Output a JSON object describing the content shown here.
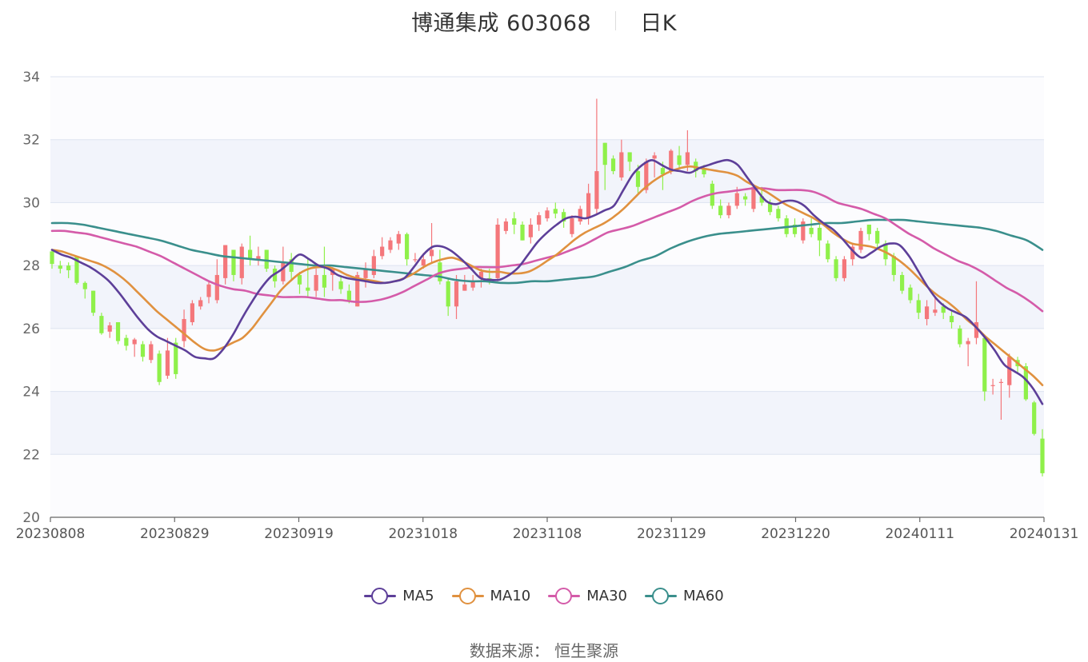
{
  "title": {
    "name": "博通集成 603068",
    "period": "日K"
  },
  "legend": [
    {
      "name": "MA5",
      "color": "#5d3f99"
    },
    {
      "name": "MA10",
      "color": "#e0913f"
    },
    {
      "name": "MA30",
      "color": "#d45ba9"
    },
    {
      "name": "MA60",
      "color": "#3a8f8c"
    }
  ],
  "source": "数据来源： 恒生聚源",
  "colors": {
    "up": "#f4777b",
    "down": "#8ff04a",
    "grid": "#dde3f0",
    "band": "#f2f4fb"
  },
  "chart_data": {
    "type": "candlestick",
    "ylim": [
      20,
      34
    ],
    "y_ticks": [
      "20",
      "22",
      "24",
      "26",
      "28",
      "30",
      "32",
      "34"
    ],
    "x_ticks": [
      "20230808",
      "20230829",
      "20230919",
      "20231018",
      "20231108",
      "20231129",
      "20231220",
      "20240111",
      "20240131"
    ],
    "candles": [
      [
        28.45,
        28.05,
        28.5,
        27.9
      ],
      [
        28.0,
        27.9,
        28.15,
        27.75
      ],
      [
        28.0,
        27.85,
        28.1,
        27.6
      ],
      [
        28.3,
        27.45,
        28.3,
        27.4
      ],
      [
        27.45,
        27.25,
        27.5,
        26.95
      ],
      [
        27.2,
        26.5,
        27.2,
        26.4
      ],
      [
        26.4,
        25.85,
        26.5,
        25.8
      ],
      [
        25.9,
        26.1,
        26.2,
        25.7
      ],
      [
        26.2,
        25.6,
        26.2,
        25.5
      ],
      [
        25.7,
        25.45,
        25.8,
        25.3
      ],
      [
        25.5,
        25.65,
        25.7,
        25.1
      ],
      [
        25.5,
        25.1,
        25.6,
        24.95
      ],
      [
        25.0,
        25.5,
        25.6,
        24.9
      ],
      [
        25.2,
        24.3,
        25.3,
        24.2
      ],
      [
        24.5,
        25.3,
        25.7,
        24.4
      ],
      [
        25.55,
        24.55,
        25.7,
        24.4
      ],
      [
        25.6,
        26.3,
        26.6,
        25.4
      ],
      [
        26.2,
        26.8,
        26.9,
        26.1
      ],
      [
        26.7,
        26.9,
        27.0,
        26.6
      ],
      [
        27.0,
        27.4,
        27.5,
        26.8
      ],
      [
        26.9,
        27.7,
        28.2,
        26.8
      ],
      [
        27.6,
        28.65,
        28.65,
        27.4
      ],
      [
        28.5,
        27.7,
        28.5,
        27.5
      ],
      [
        27.6,
        28.6,
        28.7,
        27.4
      ],
      [
        28.5,
        28.2,
        28.95,
        28.0
      ],
      [
        28.2,
        28.3,
        28.6,
        28.0
      ],
      [
        28.5,
        27.9,
        28.5,
        27.8
      ],
      [
        27.9,
        27.5,
        28.0,
        27.3
      ],
      [
        27.5,
        28.1,
        28.6,
        27.4
      ],
      [
        28.2,
        27.8,
        28.4,
        27.5
      ],
      [
        27.7,
        27.4,
        27.8,
        27.1
      ],
      [
        27.3,
        27.2,
        28.2,
        27.0
      ],
      [
        27.2,
        27.7,
        27.9,
        27.0
      ],
      [
        27.7,
        27.3,
        28.6,
        27.0
      ],
      [
        27.7,
        27.9,
        27.95,
        27.2
      ],
      [
        27.5,
        27.25,
        27.7,
        27.1
      ],
      [
        27.2,
        26.9,
        27.4,
        26.8
      ],
      [
        26.7,
        27.7,
        27.8,
        26.7
      ],
      [
        27.6,
        27.9,
        28.1,
        27.3
      ],
      [
        27.7,
        28.3,
        28.5,
        27.6
      ],
      [
        28.3,
        28.6,
        28.9,
        28.2
      ],
      [
        28.5,
        28.8,
        28.9,
        28.4
      ],
      [
        28.7,
        29.0,
        29.1,
        28.5
      ],
      [
        29.0,
        28.2,
        29.05,
        28.0
      ],
      [
        28.2,
        28.2,
        28.4,
        28.1
      ],
      [
        28.0,
        28.2,
        28.4,
        27.9
      ],
      [
        28.3,
        28.5,
        29.35,
        28.1
      ],
      [
        28.1,
        27.5,
        28.5,
        27.4
      ],
      [
        27.5,
        26.7,
        27.6,
        26.4
      ],
      [
        26.7,
        27.5,
        27.7,
        26.3
      ],
      [
        27.2,
        27.4,
        27.7,
        27.2
      ],
      [
        27.3,
        27.5,
        27.7,
        27.2
      ],
      [
        27.6,
        27.8,
        27.9,
        27.3
      ],
      [
        27.6,
        27.5,
        27.9,
        27.4
      ],
      [
        27.6,
        29.3,
        29.5,
        27.5
      ],
      [
        29.1,
        29.4,
        29.5,
        29.0
      ],
      [
        29.5,
        29.3,
        29.7,
        29.0
      ],
      [
        29.3,
        28.8,
        29.4,
        28.8
      ],
      [
        28.9,
        29.3,
        29.5,
        28.7
      ],
      [
        29.3,
        29.6,
        29.7,
        29.1
      ],
      [
        29.5,
        29.75,
        29.85,
        29.4
      ],
      [
        29.8,
        29.65,
        30.0,
        29.5
      ],
      [
        29.7,
        29.4,
        29.8,
        29.2
      ],
      [
        29.0,
        29.5,
        29.6,
        28.9
      ],
      [
        29.4,
        29.8,
        29.9,
        29.3
      ],
      [
        29.5,
        30.3,
        30.6,
        29.3
      ],
      [
        29.8,
        31.0,
        33.3,
        29.6
      ],
      [
        31.9,
        31.2,
        31.9,
        30.4
      ],
      [
        31.4,
        31.0,
        31.5,
        30.9
      ],
      [
        30.8,
        31.6,
        32.0,
        30.7
      ],
      [
        31.6,
        31.3,
        31.6,
        31.0
      ],
      [
        31.0,
        30.5,
        31.2,
        30.3
      ],
      [
        30.4,
        31.3,
        31.4,
        30.3
      ],
      [
        31.4,
        31.5,
        31.6,
        30.8
      ],
      [
        31.1,
        30.9,
        31.3,
        30.4
      ],
      [
        31.0,
        31.65,
        31.7,
        30.9
      ],
      [
        31.5,
        31.2,
        31.8,
        31.1
      ],
      [
        31.2,
        31.6,
        32.3,
        31.0
      ],
      [
        31.3,
        31.0,
        31.4,
        30.8
      ],
      [
        31.1,
        30.9,
        31.2,
        30.8
      ],
      [
        30.6,
        29.9,
        30.7,
        29.8
      ],
      [
        29.9,
        29.6,
        30.1,
        29.5
      ],
      [
        29.6,
        29.9,
        30.0,
        29.5
      ],
      [
        29.9,
        30.3,
        30.5,
        29.8
      ],
      [
        30.2,
        30.1,
        30.3,
        29.9
      ],
      [
        29.8,
        30.5,
        30.6,
        29.7
      ],
      [
        30.2,
        30.0,
        30.5,
        29.9
      ],
      [
        30.0,
        29.7,
        30.1,
        29.6
      ],
      [
        29.8,
        29.5,
        29.9,
        29.4
      ],
      [
        29.5,
        29.0,
        29.6,
        28.9
      ],
      [
        29.3,
        29.0,
        29.5,
        28.9
      ],
      [
        28.8,
        29.4,
        29.5,
        28.7
      ],
      [
        29.2,
        29.0,
        29.5,
        28.9
      ],
      [
        29.2,
        28.8,
        29.3,
        28.3
      ],
      [
        28.7,
        28.2,
        28.8,
        28.1
      ],
      [
        28.2,
        27.6,
        28.3,
        27.5
      ],
      [
        27.6,
        28.2,
        28.3,
        27.5
      ],
      [
        28.2,
        28.6,
        28.7,
        28.0
      ],
      [
        28.5,
        29.1,
        29.2,
        28.4
      ],
      [
        29.3,
        29.0,
        29.3,
        28.8
      ],
      [
        29.1,
        28.7,
        29.2,
        28.5
      ],
      [
        28.7,
        28.2,
        28.8,
        28.0
      ],
      [
        28.3,
        27.7,
        28.4,
        27.5
      ],
      [
        27.7,
        27.2,
        27.8,
        27.1
      ],
      [
        27.3,
        26.9,
        27.4,
        26.8
      ],
      [
        26.9,
        26.5,
        27.1,
        26.3
      ],
      [
        26.3,
        26.7,
        26.9,
        26.1
      ],
      [
        26.5,
        26.6,
        27.0,
        26.4
      ],
      [
        26.7,
        26.5,
        26.8,
        26.3
      ],
      [
        26.4,
        26.2,
        26.6,
        26.0
      ],
      [
        26.0,
        25.5,
        26.1,
        25.4
      ],
      [
        25.5,
        25.6,
        25.7,
        24.8
      ],
      [
        25.7,
        26.2,
        27.5,
        25.5
      ],
      [
        25.7,
        24.0,
        25.8,
        23.7
      ],
      [
        24.2,
        24.2,
        24.4,
        23.9
      ],
      [
        24.3,
        24.3,
        24.4,
        23.1
      ],
      [
        24.2,
        25.1,
        25.2,
        23.8
      ],
      [
        25.0,
        24.8,
        25.1,
        24.6
      ],
      [
        24.8,
        23.75,
        24.9,
        23.7
      ],
      [
        23.65,
        22.65,
        23.7,
        22.6
      ],
      [
        22.5,
        21.4,
        22.8,
        21.3
      ]
    ],
    "ma5": [
      28.5,
      28.35,
      28.25,
      28.1,
      27.95,
      27.75,
      27.5,
      27.15,
      26.75,
      26.35,
      26.0,
      25.75,
      25.6,
      25.45,
      25.3,
      25.1,
      25.05,
      25.05,
      25.35,
      25.8,
      26.35,
      26.85,
      27.3,
      27.65,
      27.85,
      28.1,
      28.35,
      28.2,
      28.0,
      27.9,
      27.7,
      27.6,
      27.55,
      27.5,
      27.45,
      27.45,
      27.5,
      27.6,
      27.95,
      28.35,
      28.6,
      28.6,
      28.45,
      28.2,
      27.9,
      27.6,
      27.55,
      27.55,
      27.7,
      27.95,
      28.35,
      28.75,
      29.05,
      29.3,
      29.5,
      29.55,
      29.5,
      29.6,
      29.75,
      29.9,
      30.4,
      30.9,
      31.2,
      31.35,
      31.2,
      31.05,
      31.0,
      30.95,
      31.1,
      31.2,
      31.3,
      31.35,
      31.2,
      30.8,
      30.4,
      30.05,
      29.95,
      30.05,
      30.05,
      29.9,
      29.6,
      29.35,
      29.15,
      28.85,
      28.5,
      28.25,
      28.4,
      28.6,
      28.7,
      28.65,
      28.3,
      27.8,
      27.3,
      26.9,
      26.65,
      26.5,
      26.35,
      26.05,
      25.7,
      25.3,
      24.85,
      24.65,
      24.45,
      24.1,
      23.6
    ],
    "ma10": [
      28.5,
      28.45,
      28.35,
      28.25,
      28.15,
      28.05,
      27.9,
      27.7,
      27.45,
      27.15,
      26.85,
      26.55,
      26.3,
      26.05,
      25.8,
      25.55,
      25.35,
      25.3,
      25.4,
      25.55,
      25.7,
      26.0,
      26.4,
      26.8,
      27.2,
      27.5,
      27.75,
      27.9,
      27.95,
      27.95,
      27.85,
      27.7,
      27.6,
      27.55,
      27.5,
      27.45,
      27.5,
      27.6,
      27.75,
      27.95,
      28.1,
      28.2,
      28.25,
      28.15,
      28.0,
      27.85,
      27.8,
      27.8,
      27.75,
      27.75,
      27.8,
      27.95,
      28.15,
      28.35,
      28.6,
      28.85,
      29.05,
      29.2,
      29.35,
      29.55,
      29.8,
      30.1,
      30.4,
      30.65,
      30.85,
      31.0,
      31.1,
      31.15,
      31.1,
      31.05,
      31.0,
      30.95,
      30.85,
      30.65,
      30.5,
      30.35,
      30.15,
      29.95,
      29.8,
      29.65,
      29.5,
      29.3,
      29.05,
      28.85,
      28.7,
      28.65,
      28.6,
      28.5,
      28.35,
      28.15,
      27.9,
      27.6,
      27.3,
      27.05,
      26.85,
      26.6,
      26.3,
      26.05,
      25.75,
      25.5,
      25.25,
      25.0,
      24.75,
      24.5,
      24.2
    ],
    "ma30": [
      29.1,
      29.1,
      29.05,
      29.0,
      28.9,
      28.8,
      28.7,
      28.6,
      28.45,
      28.3,
      28.1,
      27.9,
      27.7,
      27.5,
      27.35,
      27.25,
      27.2,
      27.1,
      27.05,
      27.0,
      27.0,
      27.0,
      26.95,
      26.9,
      26.9,
      26.85,
      26.85,
      26.9,
      27.0,
      27.15,
      27.35,
      27.55,
      27.75,
      27.85,
      27.9,
      27.95,
      27.95,
      27.95,
      28.0,
      28.05,
      28.15,
      28.25,
      28.35,
      28.5,
      28.65,
      28.85,
      29.05,
      29.15,
      29.25,
      29.4,
      29.55,
      29.7,
      29.85,
      30.05,
      30.2,
      30.3,
      30.35,
      30.4,
      30.45,
      30.45,
      30.4,
      30.4,
      30.4,
      30.35,
      30.2,
      30.0,
      29.9,
      29.8,
      29.65,
      29.5,
      29.25,
      29.0,
      28.8,
      28.55,
      28.35,
      28.15,
      28.0,
      27.8,
      27.55,
      27.3,
      27.1,
      26.85,
      26.55
    ],
    "ma60": [
      29.35,
      29.35,
      29.3,
      29.2,
      29.1,
      29.0,
      28.9,
      28.8,
      28.65,
      28.5,
      28.4,
      28.3,
      28.25,
      28.2,
      28.15,
      28.1,
      28.05,
      28.0,
      28.0,
      27.95,
      27.9,
      27.85,
      27.8,
      27.75,
      27.7,
      27.65,
      27.55,
      27.5,
      27.5,
      27.45,
      27.45,
      27.5,
      27.5,
      27.55,
      27.6,
      27.65,
      27.8,
      27.95,
      28.15,
      28.3,
      28.55,
      28.75,
      28.9,
      29.0,
      29.05,
      29.1,
      29.15,
      29.2,
      29.25,
      29.3,
      29.35,
      29.35,
      29.4,
      29.45,
      29.45,
      29.45,
      29.4,
      29.35,
      29.3,
      29.25,
      29.2,
      29.1,
      28.95,
      28.8,
      28.5
    ]
  }
}
